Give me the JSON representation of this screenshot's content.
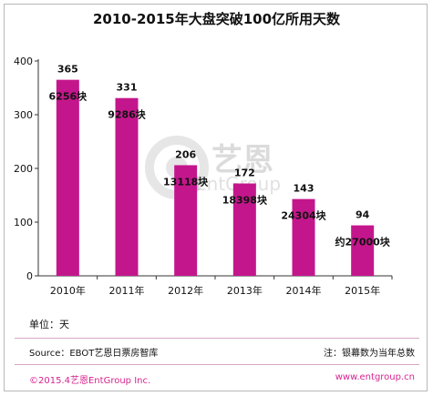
{
  "chart_data": {
    "type": "bar",
    "title": "2010-2015年大盘突破100亿所用天数",
    "categories": [
      "2010年",
      "2011年",
      "2012年",
      "2013年",
      "2014年",
      "2015年"
    ],
    "values": [
      365,
      331,
      206,
      172,
      143,
      94
    ],
    "screen_labels": [
      "6256块",
      "9286块",
      "13118块",
      "18398块",
      "24304块",
      "约27000块"
    ],
    "ylim": [
      0,
      400
    ],
    "yticks": [
      0,
      100,
      200,
      300,
      400
    ],
    "bar_color": "#c4168c",
    "grid": false
  },
  "footer": {
    "unit": "单位：天",
    "source": "Source：EBOT艺恩日票房智库",
    "note": "注：银幕数为当年总数",
    "copyright": "©2015.4艺恩EntGroup Inc.",
    "site": "www.entgroup.cn"
  },
  "watermark": {
    "brand": "艺恩",
    "sub": "EntGroup"
  },
  "colors": {
    "accent": "#d6238f",
    "divider": "#d7a6c4"
  }
}
